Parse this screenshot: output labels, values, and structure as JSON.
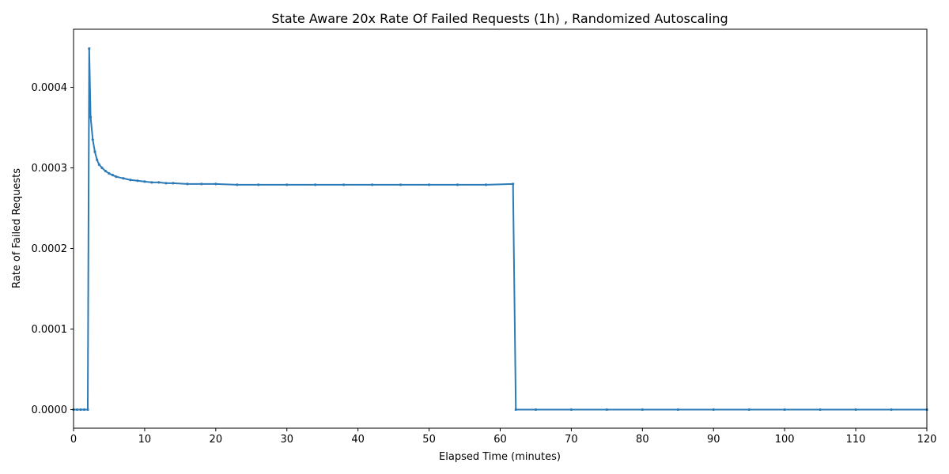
{
  "chart_data": {
    "type": "line",
    "title": "State Aware 20x Rate Of Failed Requests (1h) , Randomized Autoscaling",
    "xlabel": "Elapsed Time (minutes)",
    "ylabel": "Rate of Failed Requests",
    "xlim": [
      0,
      120
    ],
    "ylim": [
      -2.3e-05,
      0.000472
    ],
    "x_ticks": [
      0,
      10,
      20,
      30,
      40,
      50,
      60,
      70,
      80,
      90,
      100,
      110,
      120
    ],
    "y_ticks": [
      0.0,
      0.0001,
      0.0002,
      0.0003,
      0.0004
    ],
    "y_tick_labels": [
      "0.0000",
      "0.0001",
      "0.0002",
      "0.0003",
      "0.0004"
    ],
    "grid": false,
    "colors": {
      "series": "#2c7bb6",
      "axes": "#000000",
      "background": "#ffffff"
    },
    "series": [
      {
        "marker": "dot",
        "points": [
          [
            0.0,
            0.0
          ],
          [
            0.5,
            0.0
          ],
          [
            1.0,
            0.0
          ],
          [
            1.5,
            0.0
          ],
          [
            2.0,
            0.0
          ],
          [
            2.2,
            0.000448
          ],
          [
            2.4,
            0.000363
          ],
          [
            2.7,
            0.000335
          ],
          [
            3.0,
            0.00032
          ],
          [
            3.3,
            0.00031
          ],
          [
            3.6,
            0.000304
          ],
          [
            4.0,
            0.0003
          ],
          [
            4.5,
            0.000296
          ],
          [
            5.0,
            0.000293
          ],
          [
            5.5,
            0.000291
          ],
          [
            6.0,
            0.000289
          ],
          [
            7.0,
            0.000287
          ],
          [
            8.0,
            0.000285
          ],
          [
            9.0,
            0.000284
          ],
          [
            10.0,
            0.000283
          ],
          [
            11.0,
            0.000282
          ],
          [
            12.0,
            0.000282
          ],
          [
            13.0,
            0.000281
          ],
          [
            14.0,
            0.000281
          ],
          [
            16.0,
            0.00028
          ],
          [
            18.0,
            0.00028
          ],
          [
            20.0,
            0.00028
          ],
          [
            23.0,
            0.000279
          ],
          [
            26.0,
            0.000279
          ],
          [
            30.0,
            0.000279
          ],
          [
            34.0,
            0.000279
          ],
          [
            38.0,
            0.000279
          ],
          [
            42.0,
            0.000279
          ],
          [
            46.0,
            0.000279
          ],
          [
            50.0,
            0.000279
          ],
          [
            54.0,
            0.000279
          ],
          [
            58.0,
            0.000279
          ],
          [
            61.8,
            0.00028
          ],
          [
            62.2,
            0.0
          ],
          [
            65.0,
            0.0
          ],
          [
            70.0,
            0.0
          ],
          [
            75.0,
            0.0
          ],
          [
            80.0,
            0.0
          ],
          [
            85.0,
            0.0
          ],
          [
            90.0,
            0.0
          ],
          [
            95.0,
            0.0
          ],
          [
            100.0,
            0.0
          ],
          [
            105.0,
            0.0
          ],
          [
            110.0,
            0.0
          ],
          [
            115.0,
            0.0
          ],
          [
            120.0,
            0.0
          ]
        ]
      }
    ]
  }
}
